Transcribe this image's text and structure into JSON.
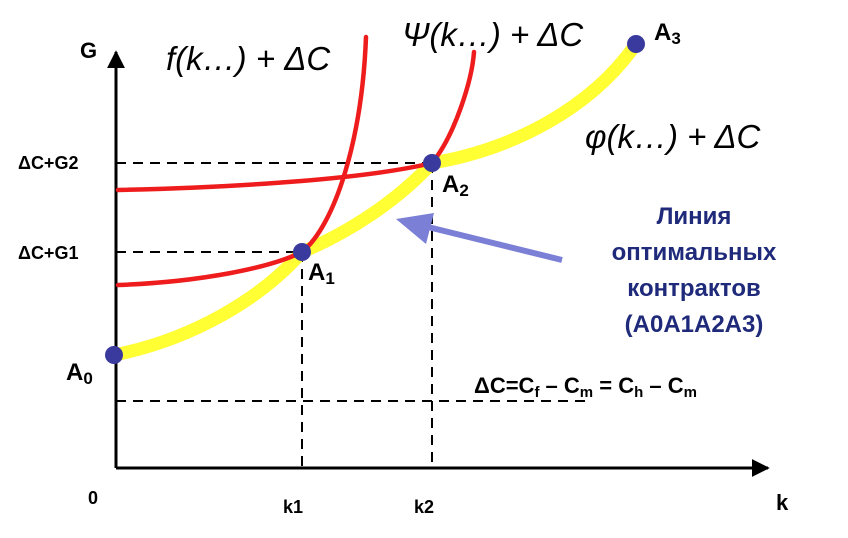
{
  "axes": {
    "y_label": "G",
    "x_label": "k",
    "origin_label": "0",
    "y_ticks": [
      "ΔC+G2",
      "ΔC+G1"
    ],
    "x_ticks": [
      "k1",
      "k2"
    ]
  },
  "curves": {
    "f_label": "f(k…) + ΔC",
    "psi_label": "Ψ(k…) + ΔC",
    "phi_label": "φ(k…) + ΔC"
  },
  "points": [
    {
      "base": "A",
      "sub": "0"
    },
    {
      "base": "A",
      "sub": "1"
    },
    {
      "base": "A",
      "sub": "2"
    },
    {
      "base": "A",
      "sub": "3"
    }
  ],
  "annotation": {
    "lines": [
      "Линия",
      "оптимальных",
      "контрактов",
      "(A0A1A2A3)"
    ]
  },
  "formula": {
    "parts": [
      "ΔC=C",
      "f",
      " – C",
      "m",
      " = C",
      "h",
      " – C",
      "m"
    ]
  },
  "colors": {
    "red_curve": "#ee1c1c",
    "yellow_curve": "#ffff33",
    "point_fill": "#3a3a9e",
    "arrow": "#7b7fd6",
    "annotation_text": "#1f2a7a"
  }
}
